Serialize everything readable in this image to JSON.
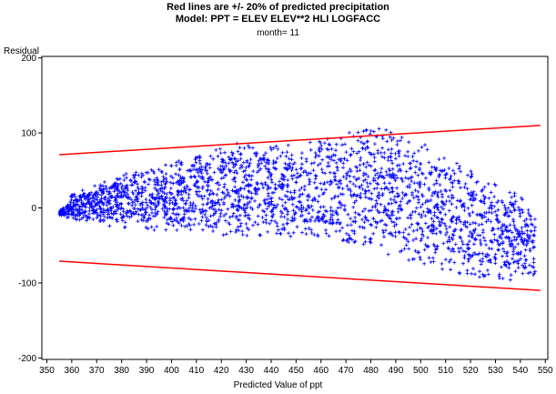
{
  "chart_data": {
    "type": "scatter",
    "title": "Red lines are +/- 20% of predicted precipitation",
    "subtitle": "Model: PPT = ELEV ELEV**2 HLI LOGFACC",
    "subtitle2": "month= 11",
    "xlabel": "Predicted Value of ppt",
    "ylabel": "Residual",
    "xlim": [
      348,
      551
    ],
    "ylim": [
      -202,
      202
    ],
    "xticks": [
      350,
      360,
      370,
      380,
      390,
      400,
      410,
      420,
      430,
      440,
      450,
      460,
      470,
      480,
      490,
      500,
      510,
      520,
      530,
      540,
      550
    ],
    "yticks": [
      -200,
      -100,
      0,
      100,
      200
    ],
    "grid": false,
    "marker": "+",
    "colors": {
      "points": "#0000ff",
      "bands": "#ff0000",
      "axis": "#000000"
    },
    "reference_lines": [
      {
        "x": [
          355,
          548
        ],
        "y": [
          71,
          110
        ]
      },
      {
        "x": [
          355,
          548
        ],
        "y": [
          -71,
          -110
        ]
      }
    ],
    "point_cloud_envelope": {
      "x": [
        355,
        360,
        370,
        380,
        390,
        400,
        410,
        420,
        430,
        440,
        450,
        460,
        470,
        480,
        490,
        500,
        510,
        520,
        530,
        540,
        546
      ],
      "upper": [
        -5,
        18,
        32,
        45,
        52,
        60,
        70,
        88,
        88,
        85,
        85,
        90,
        100,
        115,
        100,
        90,
        70,
        50,
        35,
        20,
        -10
      ],
      "lower": [
        -10,
        -15,
        -20,
        -28,
        -30,
        -32,
        -35,
        -37,
        -38,
        -38,
        -38,
        -40,
        -45,
        -55,
        -65,
        -75,
        -85,
        -92,
        -95,
        -98,
        -100
      ]
    }
  }
}
